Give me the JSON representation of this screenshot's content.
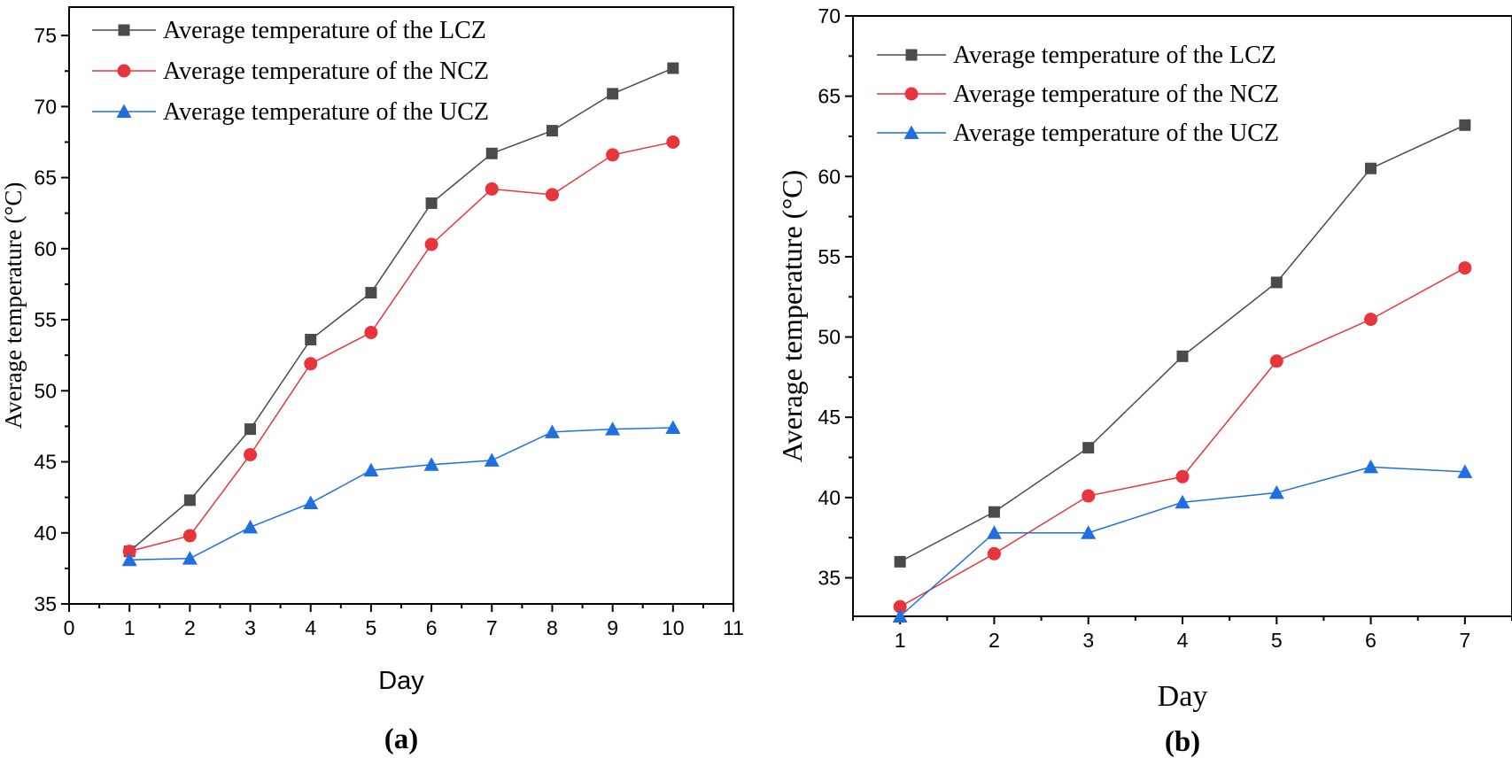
{
  "chart_data": [
    {
      "type": "line",
      "panel_label": "(a)",
      "title": "",
      "xlabel": "Day",
      "ylabel": "Average temperature (°C)",
      "xlim": [
        0,
        11
      ],
      "ylim": [
        35,
        77
      ],
      "xticks": [
        0,
        1,
        2,
        3,
        4,
        5,
        6,
        7,
        8,
        9,
        10,
        11
      ],
      "yticks": [
        35,
        40,
        45,
        50,
        55,
        60,
        65,
        70,
        75
      ],
      "x": [
        1,
        2,
        3,
        4,
        5,
        6,
        7,
        8,
        9,
        10
      ],
      "legend_position": "top-left",
      "series": [
        {
          "name": "Average temperature of the LCZ",
          "marker": "square",
          "color": "#4a4a4a",
          "values": [
            38.7,
            42.3,
            47.3,
            53.6,
            56.9,
            63.2,
            66.7,
            68.3,
            70.9,
            72.7
          ]
        },
        {
          "name": "Average temperature of the NCZ",
          "marker": "circle",
          "color": "#e8343b",
          "values": [
            38.7,
            39.8,
            45.5,
            51.9,
            54.1,
            60.3,
            64.2,
            63.8,
            66.6,
            67.5
          ]
        },
        {
          "name": "Average temperature of the UCZ",
          "marker": "triangle",
          "color": "#1f6fe0",
          "values": [
            38.1,
            38.2,
            40.4,
            42.1,
            44.4,
            44.8,
            45.1,
            47.1,
            47.3,
            47.4
          ]
        }
      ]
    },
    {
      "type": "line",
      "panel_label": "(b)",
      "title": "",
      "xlabel": "Day",
      "ylabel": "Average temperature (°C)",
      "xlim": [
        0.5,
        7.5
      ],
      "ylim": [
        32.6,
        70
      ],
      "xticks": [
        1,
        2,
        3,
        4,
        5,
        6,
        7
      ],
      "yticks": [
        35,
        40,
        45,
        50,
        55,
        60,
        65,
        70
      ],
      "x": [
        1,
        2,
        3,
        4,
        5,
        6,
        7
      ],
      "legend_position": "top-left",
      "series": [
        {
          "name": "Average temperature of the LCZ",
          "marker": "square",
          "color": "#4a4a4a",
          "values": [
            36.0,
            39.1,
            43.1,
            48.8,
            53.4,
            60.5,
            63.2
          ]
        },
        {
          "name": "Average temperature of the NCZ",
          "marker": "circle",
          "color": "#e8343b",
          "values": [
            33.2,
            36.5,
            40.1,
            41.3,
            48.5,
            51.1,
            54.3
          ]
        },
        {
          "name": "Average temperature of the UCZ",
          "marker": "triangle",
          "color": "#1f6fe0",
          "values": [
            32.6,
            37.8,
            37.8,
            39.7,
            40.3,
            41.9,
            41.6
          ]
        }
      ]
    }
  ]
}
